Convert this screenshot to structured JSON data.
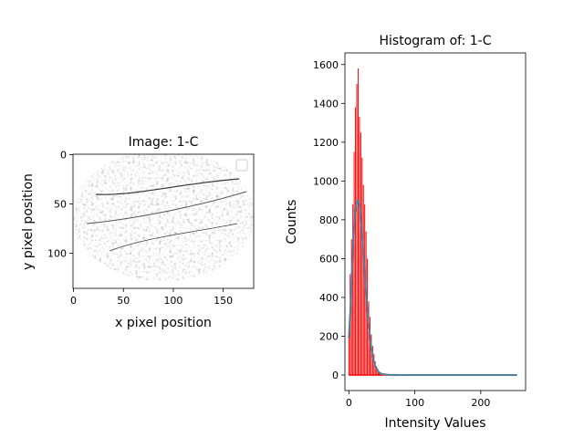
{
  "chart_data": [
    {
      "type": "image",
      "title": "Image: 1-C",
      "xlabel": "x pixel position",
      "ylabel": "y pixel position",
      "xlim": [
        -0.5,
        180.5
      ],
      "ylim": [
        135.5,
        -0.5
      ],
      "xticks": [
        0,
        50,
        100,
        150
      ],
      "yticks": [
        0,
        50,
        100
      ],
      "legend": "top-right (empty)",
      "image_description": "grayscale textured tissue sample, elliptical region on white background"
    },
    {
      "type": "histogram",
      "title": "Histogram of: 1-C",
      "xlabel": "Intensity Values",
      "ylabel": "Counts",
      "xlim": [
        -6,
        268
      ],
      "ylim": [
        -80,
        1660
      ],
      "xticks": [
        0,
        100,
        200
      ],
      "yticks": [
        0,
        200,
        400,
        600,
        800,
        1000,
        1200,
        1400,
        1600
      ],
      "series": [
        {
          "color": "#ff0000",
          "style": "bars",
          "x": [
            0,
            1,
            2,
            3,
            4,
            5,
            6,
            7,
            8,
            9,
            10,
            11,
            12,
            13,
            14,
            15,
            16,
            17,
            18,
            19,
            20,
            21,
            22,
            23,
            24,
            25,
            26,
            27,
            28,
            29,
            30,
            31,
            32,
            33,
            34,
            35,
            36,
            37,
            38,
            39,
            40,
            41,
            42,
            43,
            44,
            45,
            46,
            47,
            48,
            50,
            55,
            60,
            80,
            100,
            150,
            200,
            255
          ],
          "values": [
            190,
            0,
            520,
            0,
            700,
            0,
            880,
            0,
            1150,
            0,
            1380,
            0,
            1500,
            0,
            1580,
            0,
            1330,
            0,
            1250,
            0,
            1120,
            0,
            980,
            0,
            880,
            0,
            740,
            0,
            600,
            0,
            380,
            0,
            300,
            0,
            210,
            0,
            150,
            0,
            110,
            0,
            70,
            0,
            45,
            0,
            30,
            20,
            10,
            5,
            3,
            2,
            1,
            0,
            0,
            0,
            0,
            0,
            0
          ]
        },
        {
          "color": "#4d7f9f",
          "style": "line",
          "x": [
            0,
            3,
            6,
            9,
            12,
            14,
            16,
            18,
            20,
            23,
            26,
            30,
            35,
            40,
            45,
            50,
            60,
            80,
            100,
            150,
            200,
            255
          ],
          "values": [
            190,
            380,
            640,
            830,
            890,
            900,
            880,
            820,
            730,
            570,
            420,
            250,
            110,
            45,
            15,
            5,
            1,
            0,
            0,
            0,
            0,
            0
          ]
        }
      ]
    }
  ]
}
